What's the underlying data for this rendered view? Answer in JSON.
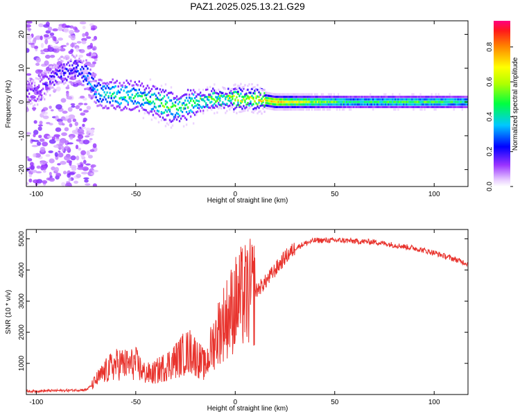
{
  "title": "PAZ1.2025.025.13.21.G29",
  "chart_data": [
    {
      "type": "heatmap",
      "xlabel": "Height of straight line (km)",
      "ylabel": "Frequency (Hz)",
      "xlim": [
        -105,
        117
      ],
      "ylim": [
        -25,
        24
      ],
      "xticks": [
        -100,
        -50,
        0,
        50,
        100
      ],
      "yticks": [
        -20,
        -10,
        0,
        10,
        20
      ],
      "colorbar": {
        "label": "Normalized spectral amplitude",
        "range": [
          0,
          0.95
        ],
        "ticks": [
          0.0,
          0.2,
          0.4,
          0.6,
          0.8
        ],
        "colormap": [
          "#ffffff",
          "#d9b3ff",
          "#7f00ff",
          "#0000ff",
          "#00ffff",
          "#00ff00",
          "#ffff00",
          "#ff8000",
          "#ff0000",
          "#ff0080"
        ]
      },
      "ridge": {
        "x": [
          -100,
          -90,
          -80,
          -75,
          -70,
          -60,
          -50,
          -40,
          -35,
          -30,
          -20,
          -10,
          0,
          10,
          20,
          40,
          60,
          80,
          100,
          117
        ],
        "freq_hz": [
          3,
          8,
          10,
          8,
          3,
          2,
          2,
          0,
          -1,
          -2,
          0,
          1,
          1,
          1,
          0,
          0,
          0,
          0,
          0,
          0
        ],
        "amplitude": [
          0.15,
          0.2,
          0.25,
          0.3,
          0.35,
          0.45,
          0.45,
          0.5,
          0.55,
          0.5,
          0.5,
          0.55,
          0.65,
          0.7,
          0.75,
          0.6,
          0.45,
          0.5,
          0.5,
          0.45
        ]
      },
      "grid": false,
      "legend": "colorbar right"
    },
    {
      "type": "line",
      "xlabel": "Height of straight line (km)",
      "ylabel": "SNR (10 * v/v)",
      "xlim": [
        -105,
        117
      ],
      "ylim": [
        0,
        5300
      ],
      "xticks": [
        -100,
        -50,
        0,
        50,
        100
      ],
      "yticks": [
        1000,
        2000,
        3000,
        4000,
        5000
      ],
      "color": "#e8322c",
      "series": [
        {
          "x": [
            -105,
            -95,
            -85,
            -80,
            -75,
            -72,
            -70,
            -66,
            -62,
            -58,
            -54,
            -50,
            -46,
            -42,
            -38,
            -34,
            -30,
            -26,
            -22,
            -18,
            -15,
            -12,
            -10,
            -8,
            -5,
            -2,
            0,
            3,
            6,
            10,
            15,
            20,
            25,
            30,
            35,
            40,
            45,
            50,
            55,
            60,
            70,
            80,
            90,
            100,
            110,
            117
          ],
          "y": [
            100,
            120,
            130,
            140,
            150,
            300,
            450,
            700,
            900,
            1000,
            950,
            1000,
            700,
            650,
            800,
            950,
            1100,
            1300,
            1400,
            1100,
            900,
            1500,
            1800,
            2100,
            2400,
            2700,
            2900,
            3100,
            3200,
            3300,
            3600,
            4000,
            4400,
            4700,
            4850,
            4950,
            4950,
            4950,
            4950,
            4920,
            4900,
            4800,
            4700,
            4550,
            4350,
            4200
          ]
        }
      ],
      "grid": false
    }
  ]
}
